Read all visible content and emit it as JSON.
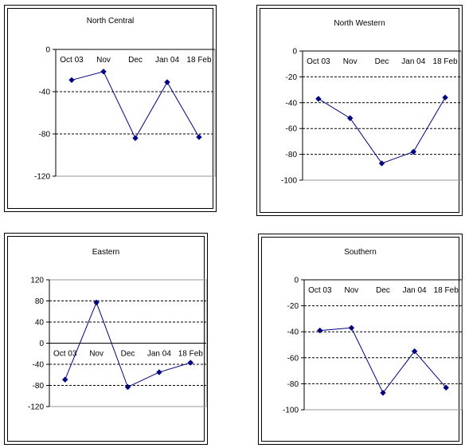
{
  "chart_data": [
    {
      "type": "line",
      "title": "North Central",
      "categories": [
        "Oct 03",
        "Nov",
        "Dec",
        "Jan 04",
        "18 Feb"
      ],
      "values": [
        -29,
        -21,
        -84,
        -31,
        -83
      ],
      "ylim": [
        -120,
        0
      ],
      "yticks": [
        0,
        -40,
        -80,
        -120
      ],
      "grid": "dashed horizontal",
      "colors": {
        "line": "#000080",
        "marker": "#000080"
      }
    },
    {
      "type": "line",
      "title": "North Western",
      "categories": [
        "Oct 03",
        "Nov",
        "Dec",
        "Jan 04",
        "18 Feb"
      ],
      "values": [
        -37,
        -52,
        -87,
        -78,
        -36
      ],
      "ylim": [
        -100,
        0
      ],
      "yticks": [
        0,
        -20,
        -40,
        -60,
        -80,
        -100
      ],
      "grid": "dashed horizontal",
      "colors": {
        "line": "#000080",
        "marker": "#000080"
      }
    },
    {
      "type": "line",
      "title": "Eastern",
      "categories": [
        "Oct 03",
        "Nov",
        "Dec",
        "Jan 04",
        "18 Feb"
      ],
      "values": [
        -69,
        77,
        -83,
        -55,
        -37
      ],
      "ylim": [
        -120,
        120
      ],
      "yticks": [
        120,
        80,
        40,
        0,
        -40,
        -80,
        -120
      ],
      "grid": "dashed horizontal",
      "colors": {
        "line": "#000080",
        "marker": "#000080"
      }
    },
    {
      "type": "line",
      "title": "Southern",
      "categories": [
        "Oct 03",
        "Nov",
        "Dec",
        "Jan 04",
        "18 Feb"
      ],
      "values": [
        -39,
        -37,
        -87,
        -55,
        -83
      ],
      "ylim": [
        -100,
        0
      ],
      "yticks": [
        0,
        -20,
        -40,
        -60,
        -80,
        -100
      ],
      "grid": "dashed horizontal",
      "colors": {
        "line": "#000080",
        "marker": "#000080"
      }
    }
  ]
}
